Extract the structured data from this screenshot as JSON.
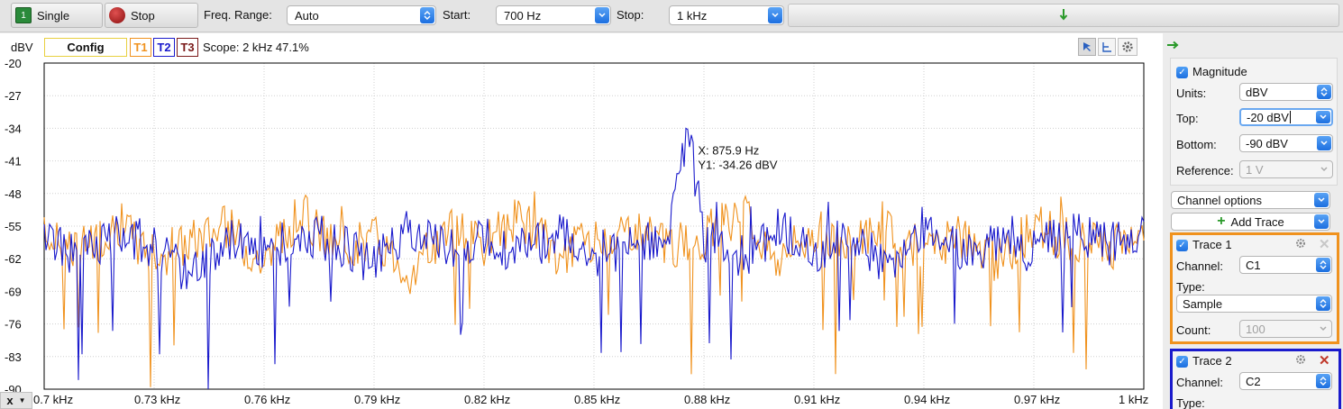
{
  "toolbar": {
    "single_label": "Single",
    "stop_label": "Stop",
    "freq_range_label": "Freq. Range:",
    "freq_range_value": "Auto",
    "start_label": "Start:",
    "start_value": "700 Hz",
    "stop_field_label": "Stop:",
    "stop_value": "1 kHz"
  },
  "plot_header": {
    "unit": "dBV",
    "config_label": "Config",
    "traces": [
      "T1",
      "T2",
      "T3"
    ],
    "scope_text": "Scope: 2 kHz 47.1%"
  },
  "cursor": {
    "x_text": "X: 875.9 Hz",
    "y_text": "Y1: -34.26 dBV"
  },
  "x_menu_label": "x",
  "colors": {
    "trace1": "#f0921e",
    "trace2": "#1a1acc",
    "trace3": "#7a1a1a",
    "accent": "#1c6fe0"
  },
  "chart_data": {
    "type": "line",
    "ylabel": "dBV",
    "ylim": [
      -90,
      -20
    ],
    "yticks": [
      "-20",
      "-27",
      "-34",
      "-41",
      "-48",
      "-55",
      "-62",
      "-69",
      "-76",
      "-83",
      "-90"
    ],
    "xlim": [
      700,
      1000
    ],
    "xticks": [
      "0.7 kHz",
      "0.73 kHz",
      "0.76 kHz",
      "0.79 kHz",
      "0.82 kHz",
      "0.85 kHz",
      "0.88 kHz",
      "0.91 kHz",
      "0.94 kHz",
      "0.97 kHz",
      "1 kHz"
    ],
    "grid": true,
    "series": [
      {
        "name": "T1",
        "color": "#f0921e",
        "x": [
          700,
          710,
          720,
          730,
          740,
          750,
          760,
          770,
          780,
          790,
          800,
          810,
          820,
          830,
          840,
          850,
          860,
          870,
          880,
          890,
          900,
          910,
          920,
          930,
          940,
          950,
          960,
          970,
          980,
          990,
          1000
        ],
        "values": [
          -57,
          -60,
          -54,
          -62,
          -58,
          -55,
          -63,
          -52,
          -60,
          -57,
          -65,
          -56,
          -59,
          -53,
          -61,
          -58,
          -55,
          -60,
          -57,
          -52,
          -62,
          -56,
          -59,
          -54,
          -61,
          -57,
          -63,
          -55,
          -58,
          -60,
          -56
        ]
      },
      {
        "name": "T2",
        "color": "#1a1acc",
        "x": [
          700,
          710,
          720,
          730,
          740,
          750,
          760,
          770,
          780,
          790,
          800,
          810,
          820,
          830,
          840,
          850,
          860,
          870,
          875.9,
          880,
          890,
          900,
          910,
          920,
          930,
          940,
          950,
          960,
          970,
          980,
          990,
          1000
        ],
        "values": [
          -58,
          -62,
          -55,
          -60,
          -65,
          -57,
          -61,
          -56,
          -59,
          -63,
          -55,
          -60,
          -58,
          -62,
          -56,
          -61,
          -59,
          -57,
          -34.26,
          -58,
          -62,
          -56,
          -60,
          -57,
          -63,
          -55,
          -61,
          -58,
          -60,
          -56,
          -59,
          -57
        ]
      }
    ]
  },
  "panel": {
    "magnitude_label": "Magnitude",
    "units_label": "Units:",
    "units_value": "dBV",
    "top_label": "Top:",
    "top_value": "-20 dBV",
    "bottom_label": "Bottom:",
    "bottom_value": "-90 dBV",
    "reference_label": "Reference:",
    "reference_value": "1 V",
    "channel_options_label": "Channel options",
    "add_trace_label": "Add Trace",
    "trace1": {
      "title": "Trace 1",
      "channel_label": "Channel:",
      "channel_value": "C1",
      "type_label": "Type:",
      "type_value": "Sample",
      "count_label": "Count:",
      "count_value": "100"
    },
    "trace2": {
      "title": "Trace 2",
      "channel_label": "Channel:",
      "channel_value": "C2",
      "type_label": "Type:"
    }
  }
}
